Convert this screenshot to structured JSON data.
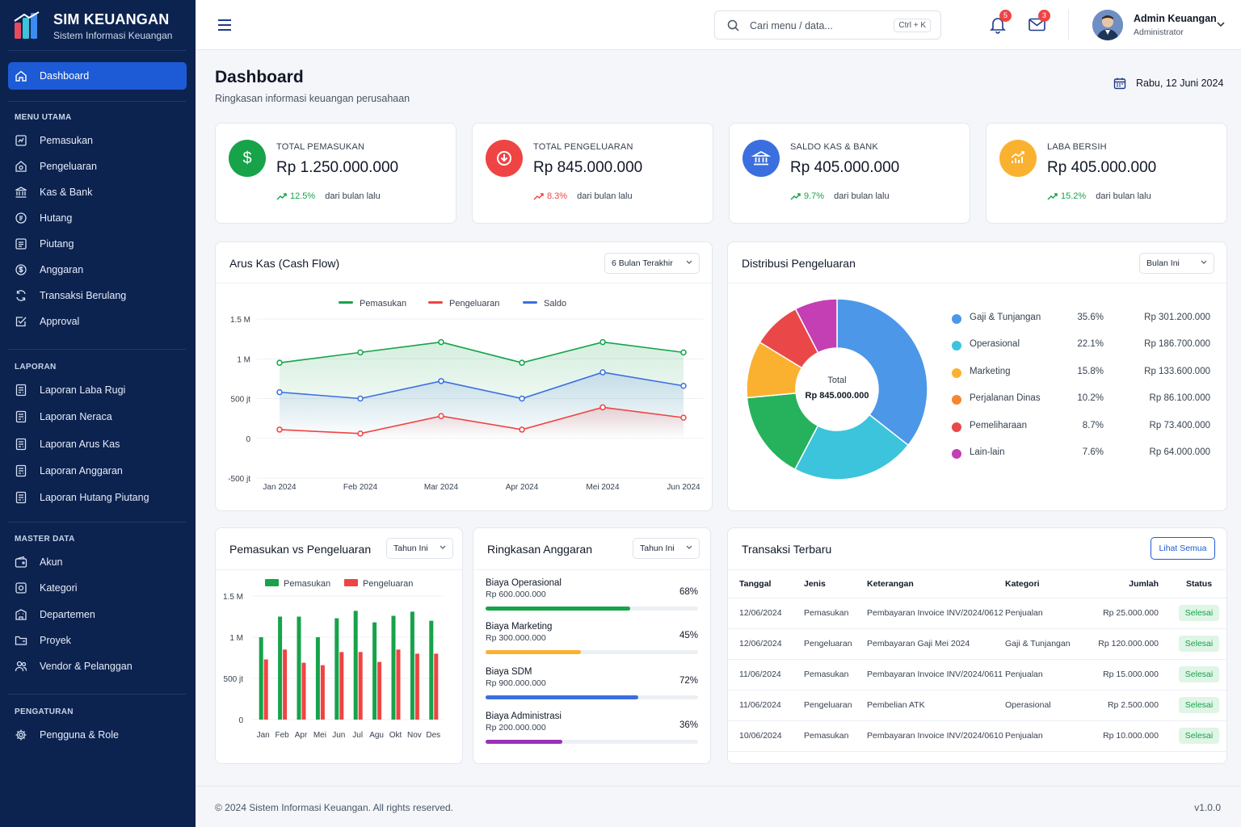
{
  "app": {
    "title": "SIM KEUANGAN",
    "subtitle": "Sistem Informasi Keuangan"
  },
  "sidebar": {
    "active": {
      "label": "Dashboard",
      "icon": "home-icon"
    },
    "sections": [
      {
        "title": "MENU UTAMA",
        "items": [
          {
            "label": "Pemasukan",
            "icon": "income-icon"
          },
          {
            "label": "Pengeluaran",
            "icon": "expense-icon"
          },
          {
            "label": "Kas & Bank",
            "icon": "bank-icon"
          },
          {
            "label": "Hutang",
            "icon": "debt-icon"
          },
          {
            "label": "Piutang",
            "icon": "receivable-icon"
          },
          {
            "label": "Anggaran",
            "icon": "budget-icon"
          },
          {
            "label": "Transaksi Berulang",
            "icon": "repeat-icon"
          },
          {
            "label": "Approval",
            "icon": "checkbox-icon"
          }
        ]
      },
      {
        "title": "LAPORAN",
        "items": [
          {
            "label": "Laporan Laba Rugi",
            "icon": "report-icon"
          },
          {
            "label": "Laporan Neraca",
            "icon": "report-icon"
          },
          {
            "label": "Laporan Arus Kas",
            "icon": "report-icon"
          },
          {
            "label": "Laporan Anggaran",
            "icon": "report-icon"
          },
          {
            "label": "Laporan Hutang Piutang",
            "icon": "report-icon"
          }
        ]
      },
      {
        "title": "MASTER DATA",
        "items": [
          {
            "label": "Akun",
            "icon": "wallet-icon"
          },
          {
            "label": "Kategori",
            "icon": "tag-icon"
          },
          {
            "label": "Departemen",
            "icon": "building-icon"
          },
          {
            "label": "Proyek",
            "icon": "folder-icon"
          },
          {
            "label": "Vendor & Pelanggan",
            "icon": "users-icon"
          }
        ]
      },
      {
        "title": "PENGATURAN",
        "items": [
          {
            "label": "Pengguna & Role",
            "icon": "gear-icon"
          }
        ]
      }
    ]
  },
  "topbar": {
    "search_placeholder": "Cari menu / data...",
    "search_shortcut": "Ctrl + K",
    "notifications_count": "5",
    "messages_count": "3",
    "user_name": "Admin Keuangan",
    "user_role": "Administrator"
  },
  "page": {
    "title": "Dashboard",
    "subtitle": "Ringkasan informasi keuangan perusahaan",
    "date": "Rabu, 12 Juni 2024"
  },
  "kpis": [
    {
      "label": "TOTAL PEMASUKAN",
      "value": "Rp 1.250.000.000",
      "trend": "12.5%",
      "suffix": "dari bulan lalu",
      "color": "#16a34a",
      "icon": "dollar-icon"
    },
    {
      "label": "TOTAL PENGELUARAN",
      "value": "Rp 845.000.000",
      "trend": "8.3%",
      "suffix": "dari bulan lalu",
      "color": "#ef4444",
      "icon": "download-circle-icon"
    },
    {
      "label": "SALDO KAS & BANK",
      "value": "Rp 405.000.000",
      "trend": "9.7%",
      "suffix": "dari bulan lalu",
      "color": "#3b6fe0",
      "icon": "bank-icon"
    },
    {
      "label": "LABA BERSIH",
      "value": "Rp 405.000.000",
      "trend": "15.2%",
      "suffix": "dari bulan lalu",
      "color": "#fbb130",
      "icon": "growth-chart-icon"
    }
  ],
  "cashflow": {
    "title": "Arus Kas (Cash Flow)",
    "filter": "6 Bulan Terakhir",
    "chart_data": {
      "type": "line",
      "categories": [
        "Jan 2024",
        "Feb 2024",
        "Mar 2024",
        "Apr 2024",
        "Mei 2024",
        "Jun 2024"
      ],
      "y_ticks": [
        "1.5 M",
        "1 M",
        "500 jt",
        "0",
        "-500 jt"
      ],
      "ylim": [
        -500,
        1500
      ],
      "y_unit": "jt",
      "series": [
        {
          "name": "Pemasukan",
          "color": "#16a34a",
          "values": [
            950,
            1080,
            1210,
            950,
            1210,
            1080
          ]
        },
        {
          "name": "Pengeluaran",
          "color": "#ef4444",
          "values": [
            110,
            60,
            280,
            110,
            390,
            260
          ]
        },
        {
          "name": "Saldo",
          "color": "#3b6fe0",
          "values": [
            580,
            500,
            720,
            500,
            830,
            660
          ]
        }
      ]
    }
  },
  "distribution": {
    "title": "Distribusi Pengeluaran",
    "filter": "Bulan Ini",
    "center_label": "Total",
    "center_value": "Rp 845.000.000",
    "chart_data": {
      "type": "pie",
      "items": [
        {
          "name": "Gaji & Tunjangan",
          "percent": 35.6,
          "percent_label": "35.6%",
          "amount": "Rp 301.200.000",
          "color": "#4c97e8"
        },
        {
          "name": "Operasional",
          "percent": 22.1,
          "percent_label": "22.1%",
          "amount": "Rp 186.700.000",
          "color": "#3cc4dc"
        },
        {
          "name": "Marketing",
          "percent": 15.8,
          "percent_label": "15.8%",
          "amount": "Rp 133.600.000",
          "color": "#26b25d"
        },
        {
          "name": "Perjalanan Dinas",
          "percent": 10.2,
          "percent_label": "10.2%",
          "amount": "Rp 86.100.000",
          "color": "#fbb130"
        },
        {
          "name": "Pemeliharaan",
          "percent": 8.7,
          "percent_label": "8.7%",
          "amount": "Rp 73.400.000",
          "color": "#ea4848"
        },
        {
          "name": "Lain-lain",
          "percent": 7.6,
          "percent_label": "7.6%",
          "amount": "Rp 64.000.000",
          "color": "#c43eb4"
        }
      ]
    }
  },
  "income_vs_expense": {
    "title": "Pemasukan vs Pengeluaran",
    "filter": "Tahun Ini",
    "chart_data": {
      "type": "bar",
      "categories": [
        "Jan",
        "Feb",
        "Apr",
        "Mei",
        "Jun",
        "Jul",
        "Agu",
        "Okt",
        "Nov",
        "Des"
      ],
      "y_ticks": [
        "1.5 M",
        "1 M",
        "500 jt",
        "0"
      ],
      "ylim": [
        0,
        1500
      ],
      "y_unit": "jt",
      "series": [
        {
          "name": "Pemasukan",
          "color": "#16a34a",
          "values": [
            1000,
            1250,
            1250,
            1000,
            1230,
            1320,
            1180,
            1260,
            1310,
            1200
          ]
        },
        {
          "name": "Pengeluaran",
          "color": "#ef4444",
          "values": [
            730,
            850,
            690,
            660,
            820,
            820,
            700,
            850,
            800,
            800
          ]
        }
      ]
    }
  },
  "budget": {
    "title": "Ringkasan Anggaran",
    "filter": "Tahun Ini",
    "items": [
      {
        "name": "Biaya Operasional",
        "amount": "Rp 600.000.000",
        "percent": 68,
        "percent_label": "68%",
        "color": "#16a34a"
      },
      {
        "name": "Biaya Marketing",
        "amount": "Rp 300.000.000",
        "percent": 45,
        "percent_label": "45%",
        "color": "#fbb130"
      },
      {
        "name": "Biaya SDM",
        "amount": "Rp 900.000.000",
        "percent": 72,
        "percent_label": "72%",
        "color": "#3b6fe0"
      },
      {
        "name": "Biaya Administrasi",
        "amount": "Rp 200.000.000",
        "percent": 36,
        "percent_label": "36%",
        "color": "#9b30b8"
      }
    ]
  },
  "transactions": {
    "title": "Transaksi Terbaru",
    "view_all": "Lihat Semua",
    "columns": [
      "Tanggal",
      "Jenis",
      "Keterangan",
      "Kategori",
      "Jumlah",
      "Status"
    ],
    "rows": [
      [
        "12/06/2024",
        "Pemasukan",
        "Pembayaran Invoice INV/2024/0612",
        "Penjualan",
        "Rp 25.000.000",
        "Selesai"
      ],
      [
        "12/06/2024",
        "Pengeluaran",
        "Pembayaran Gaji Mei 2024",
        "Gaji & Tunjangan",
        "Rp 120.000.000",
        "Selesai"
      ],
      [
        "11/06/2024",
        "Pemasukan",
        "Pembayaran Invoice INV/2024/0611",
        "Penjualan",
        "Rp 15.000.000",
        "Selesai"
      ],
      [
        "11/06/2024",
        "Pengeluaran",
        "Pembelian ATK",
        "Operasional",
        "Rp 2.500.000",
        "Selesai"
      ],
      [
        "10/06/2024",
        "Pemasukan",
        "Pembayaran Invoice INV/2024/0610",
        "Penjualan",
        "Rp 10.000.000",
        "Selesai"
      ]
    ]
  },
  "footer": {
    "copyright": "© 2024 Sistem Informasi Keuangan. All rights reserved.",
    "version": "v1.0.0"
  }
}
